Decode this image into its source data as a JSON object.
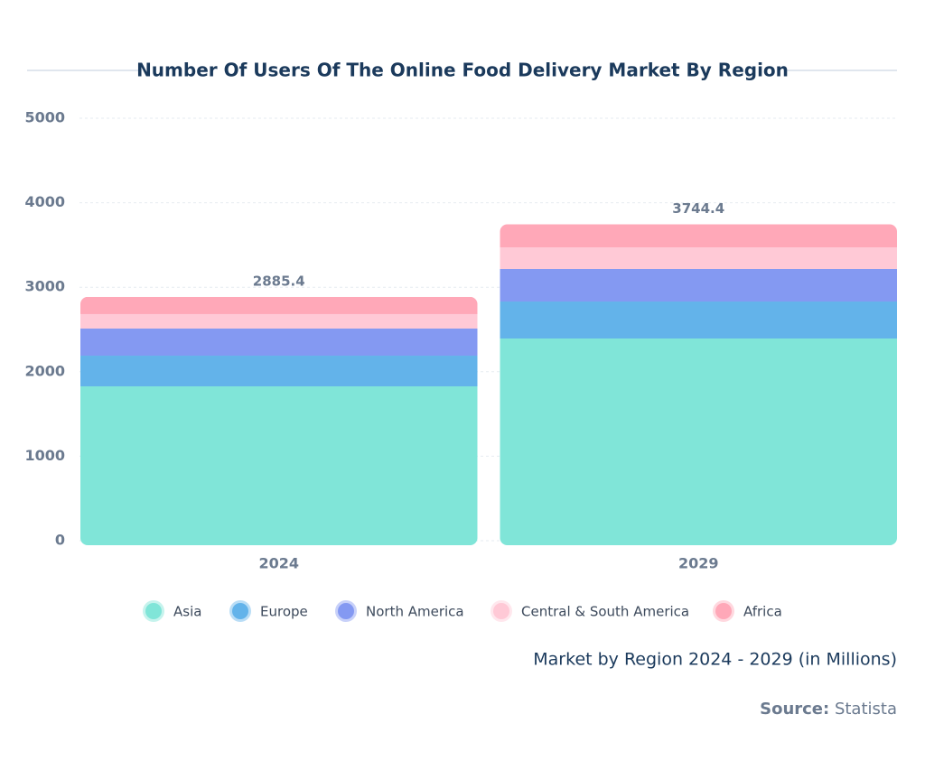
{
  "chart_data": {
    "type": "stacked-bar",
    "title": "Number Of Users Of The Online Food Delivery Market By Region",
    "subtitle": "Market by Region 2024 - 2029 (in Millions)",
    "source_label": "Source:",
    "source": "Statista",
    "categories": [
      "2024",
      "2029"
    ],
    "totals": [
      2885.4,
      3744.4
    ],
    "series": [
      {
        "name": "Asia",
        "color": "#80e5d8",
        "values": [
          1827,
          2393
        ]
      },
      {
        "name": "Europe",
        "color": "#63b3ea",
        "values": [
          363,
          438
        ]
      },
      {
        "name": "North America",
        "color": "#8499f2",
        "values": [
          321,
          385
        ]
      },
      {
        "name": "Central & South America",
        "color": "#ffc9d6",
        "values": [
          171,
          256
        ]
      },
      {
        "name": "Africa",
        "color": "#ffa8b8",
        "values": [
          203.4,
          272.4
        ]
      }
    ],
    "ylim": [
      0,
      5000
    ],
    "yticks": [
      0,
      1000,
      2000,
      3000,
      4000,
      5000
    ],
    "grid": true
  }
}
